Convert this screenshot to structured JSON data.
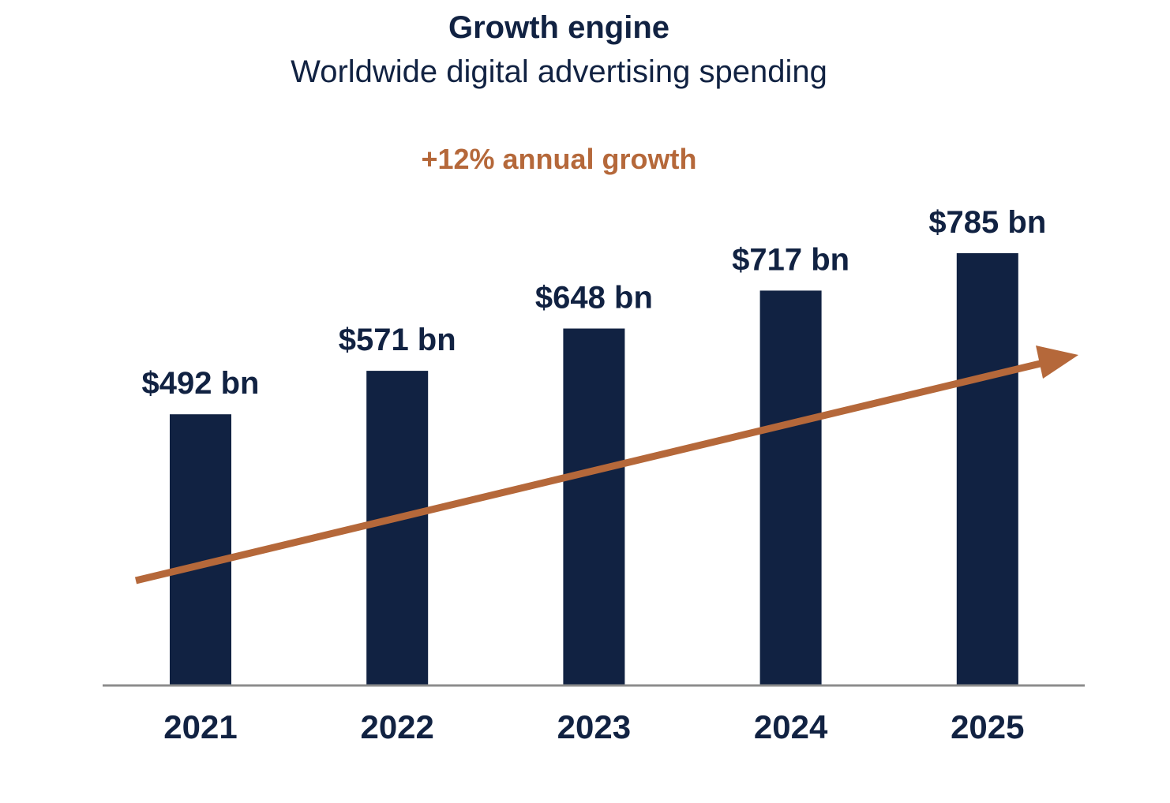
{
  "chart_data": {
    "type": "bar",
    "title": "Growth engine",
    "subtitle": "Worldwide digital advertising spending",
    "annotation": "+12% annual growth",
    "categories": [
      "2021",
      "2022",
      "2023",
      "2024",
      "2025"
    ],
    "values": [
      492,
      571,
      648,
      717,
      785
    ],
    "data_labels": [
      "$492 bn",
      "$571 bn",
      "$648 bn",
      "$717 bn",
      "$785 bn"
    ],
    "unit": "bn USD",
    "ylim": [
      0,
      900
    ],
    "xlabel": "",
    "ylabel": "",
    "grid": false,
    "trend": "upward arrow"
  },
  "colors": {
    "bar": "#112242",
    "text": "#112242",
    "accent": "#B5683A",
    "axis": "#8c8c8c"
  }
}
